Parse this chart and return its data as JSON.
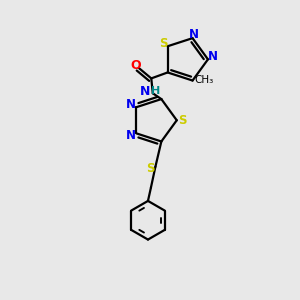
{
  "background_color": "#e8e8e8",
  "bond_color": "#000000",
  "bond_width": 1.6,
  "dbo": 0.012,
  "xlim": [
    0.0,
    1.0
  ],
  "ylim": [
    0.0,
    1.0
  ],
  "figsize": [
    3.0,
    3.0
  ],
  "dpi": 100
}
